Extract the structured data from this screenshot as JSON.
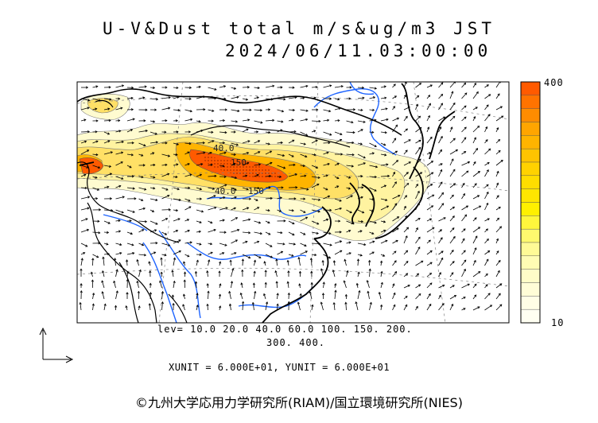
{
  "title": {
    "line1": "U-V&Dust total m/s&ug/m3 JST",
    "line2": "2024/06/11.03:00:00"
  },
  "colorbar": {
    "max_label": "400",
    "min_label": "10",
    "colors": [
      "#ff5a00",
      "#ff7300",
      "#ff8c00",
      "#ffa500",
      "#ffb400",
      "#ffc400",
      "#ffd200",
      "#ffdd00",
      "#ffe600",
      "#fff000",
      "#fff63c",
      "#fff96e",
      "#fffa96",
      "#fffcb4",
      "#fffdc8",
      "#fffdd7",
      "#fffee6",
      "#fffff2"
    ]
  },
  "contour_labels": [
    "40.0",
    "150",
    "40.0",
    "150"
  ],
  "levels": {
    "line1": "lev= 10.0 20.0 40.0 60.0 100. 150. 200.",
    "line2": "300. 400."
  },
  "units": "XUNIT = 6.000E+01, YUNIT = 6.000E+01",
  "credit": "©九州大学応用力学研究所(RIAM)/国立環境研究所(NIES)",
  "colors": {
    "coast": "#000000",
    "river": "#1e64ff",
    "grid": "#808080",
    "dust_light": "#fffbd0",
    "dust_mid": "#ffe066",
    "dust_high": "#ffa500",
    "dust_peak": "#ff4a10"
  }
}
